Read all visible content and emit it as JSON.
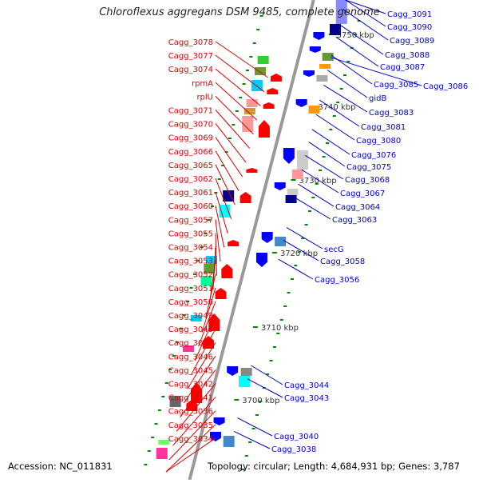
{
  "title": "Chloroflexus aggregans DSM 9485, complete genome",
  "footer": {
    "accession": "Accession: NC_011831",
    "topology": "Topology: circular; Length: 4,684,931 bp; Genes: 3,787"
  },
  "scale_labels": [
    "3750 kbp",
    "3740 kbp",
    "3730 kbp",
    "3720 kbp",
    "3710 kbp",
    "3700 kbp"
  ],
  "left_labels": [
    "Cagg_3078",
    "Cagg_3077",
    "Cagg_3074",
    "rpmA",
    "rplU",
    "Cagg_3071",
    "Cagg_3070",
    "Cagg_3069",
    "Cagg_3066",
    "Cagg_3065",
    "Cagg_3062",
    "Cagg_3061",
    "Cagg_3060",
    "Cagg_3057",
    "Cagg_3055",
    "Cagg_3054",
    "Cagg_3053",
    "Cagg_3052",
    "Cagg_3051",
    "Cagg_3050",
    "Cagg_3049",
    "Cagg_3048",
    "Cagg_3047",
    "Cagg_3046",
    "Cagg_3045",
    "Cagg_3042",
    "Cagg_3041",
    "Cagg_3036",
    "Cagg_3035",
    "Cagg_3034"
  ],
  "right_labels": [
    "Cagg_3091",
    "Cagg_3090",
    "Cagg_3089",
    "Cagg_3088",
    "Cagg_3087",
    "Cagg_3085",
    "Cagg_3086",
    "gidB",
    "Cagg_3083",
    "Cagg_3081",
    "Cagg_3080",
    "Cagg_3076",
    "Cagg_3075",
    "Cagg_3068",
    "Cagg_3067",
    "Cagg_3064",
    "Cagg_3063",
    "secG",
    "Cagg_3058",
    "Cagg_3056",
    "Cagg_3044",
    "Cagg_3043",
    "Cagg_3040",
    "Cagg_3038"
  ],
  "colors": {
    "reverse_label": "#dd0000",
    "forward_label": "#0000cc",
    "reverse_gene": "#ff0000",
    "forward_gene": "#0000ff",
    "backbone": "#999999",
    "tick": "#008800"
  }
}
